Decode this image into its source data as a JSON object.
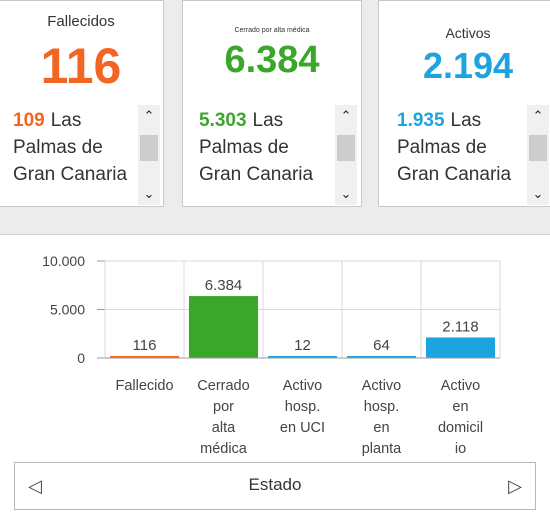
{
  "cards": [
    {
      "title": "Fallecidos",
      "value": "116",
      "color": "#f26522",
      "list_num": "109",
      "list_text": "Las Palmas de Gran Canaria"
    },
    {
      "title": "Cerrado por alta médica",
      "value": "6.384",
      "color": "#3aa62a",
      "list_num": "5.303",
      "list_text": "Las Palmas de Gran Canaria"
    },
    {
      "title": "Activos",
      "value": "2.194",
      "color": "#1ca3e0",
      "list_num": "1.935",
      "list_text": "Las Palmas de Gran Canaria"
    }
  ],
  "scroll_icons": {
    "up": "chevron-up-icon",
    "down": "chevron-down-icon"
  },
  "chart_data": {
    "type": "bar",
    "categories": [
      "Fallecido",
      "Cerrado por alta médica",
      "Activo hosp. en UCI",
      "Activo hosp. en planta",
      "Activo en domicilio"
    ],
    "category_lines": [
      [
        "Fallecido"
      ],
      [
        "Cerrado",
        "por",
        "alta",
        "médica"
      ],
      [
        "Activo",
        "hosp.",
        "en UCI"
      ],
      [
        "Activo",
        "hosp.",
        "en",
        "planta"
      ],
      [
        "Activo",
        "en",
        "domicil",
        "io"
      ]
    ],
    "values": [
      116,
      6384,
      12,
      64,
      2118
    ],
    "value_labels": [
      "116",
      "6.384",
      "12",
      "64",
      "2.118"
    ],
    "colors": [
      "#f26522",
      "#3aa62a",
      "#1ca3e0",
      "#1ca3e0",
      "#1ca3e0"
    ],
    "yticks": [
      0,
      5000,
      10000
    ],
    "ytick_labels": [
      "0",
      "5.000",
      "10.000"
    ],
    "ylim": [
      0,
      10000
    ],
    "xlabel": "Estado",
    "grid": true
  },
  "footer": {
    "label": "Estado",
    "prev_icon": "chevron-left-icon",
    "next_icon": "chevron-right-icon"
  }
}
